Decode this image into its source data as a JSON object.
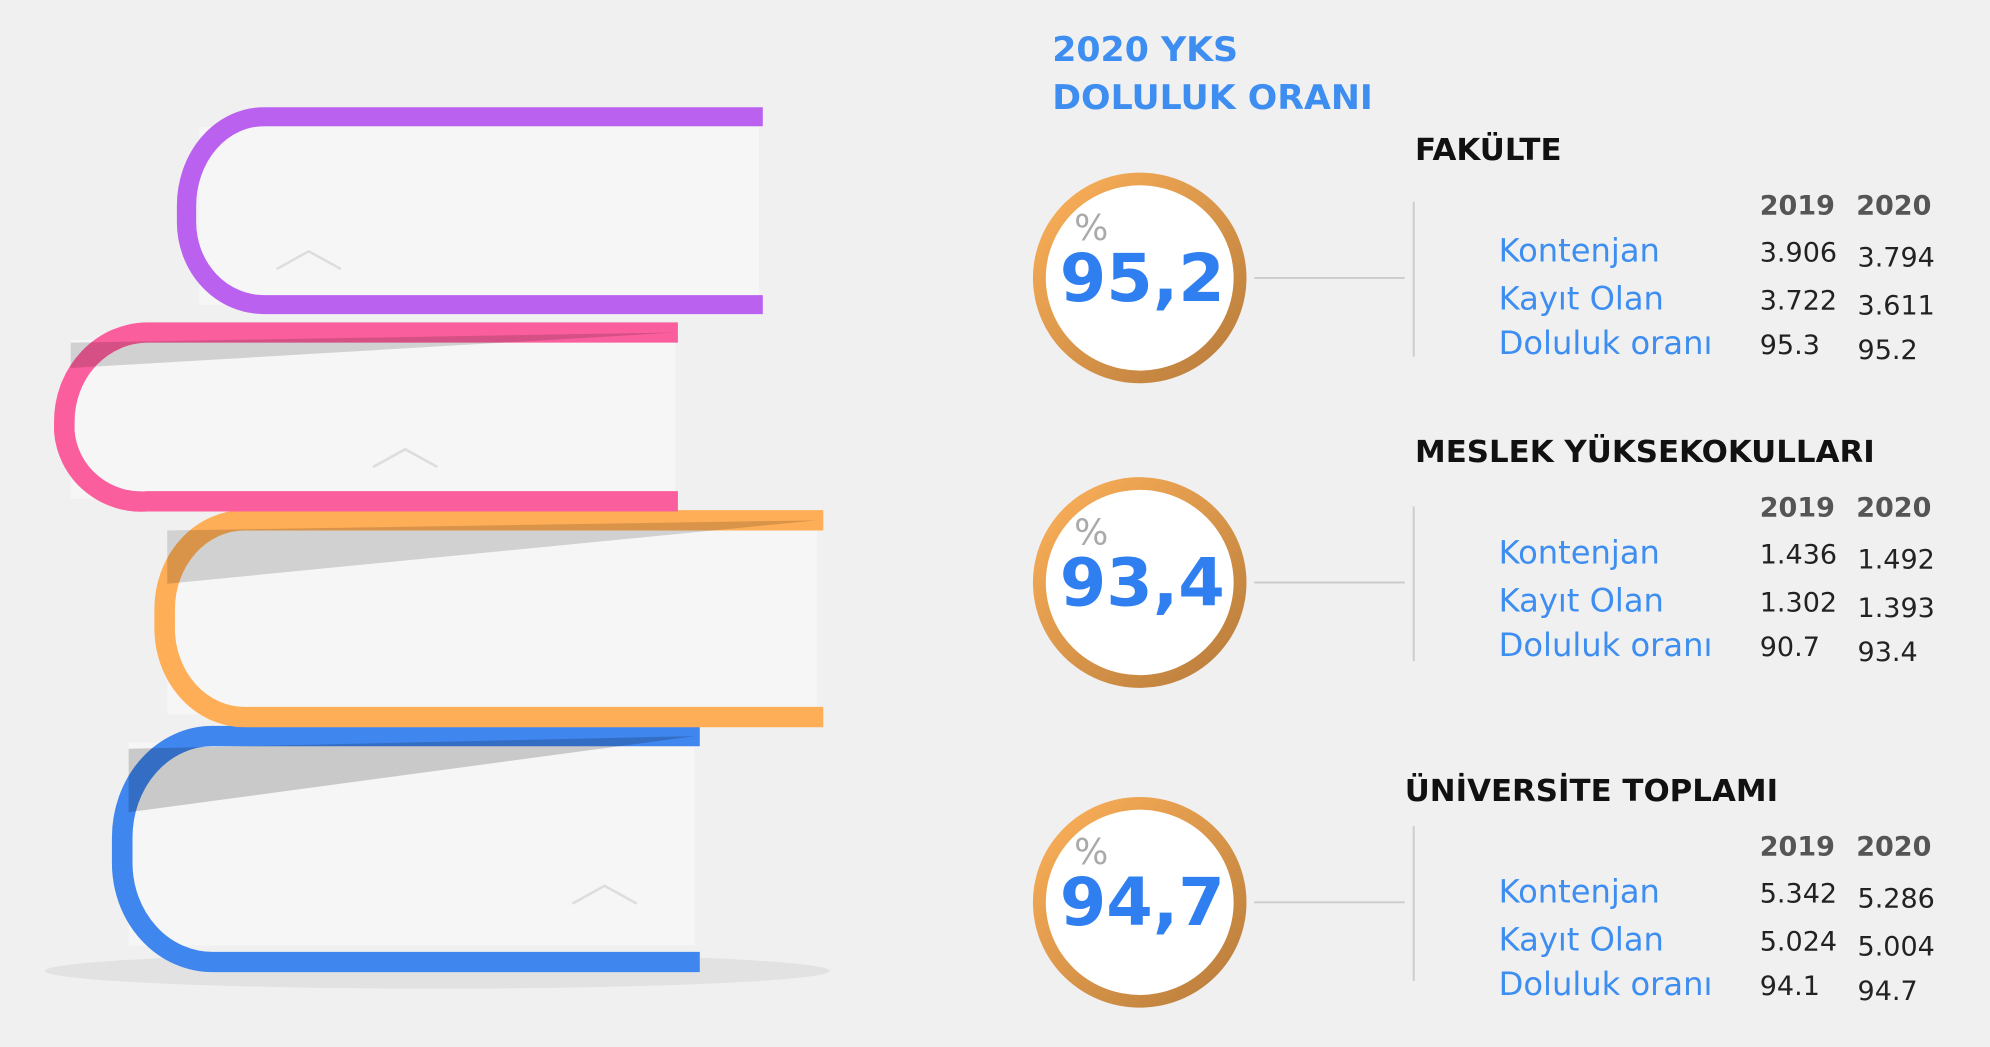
{
  "header": {
    "title_line1": "2020 YKS",
    "title_line2": "DOLULUK ORANI"
  },
  "sections": [
    {
      "heading": "FAKÜLTE",
      "symbol": "%",
      "value": "95,2",
      "years": [
        "2019",
        "2020"
      ],
      "rows": [
        {
          "label": "Kontenjan",
          "cells": [
            "3.906",
            "3.794"
          ]
        },
        {
          "label": "Kayıt Olan",
          "cells": [
            "3.722",
            "3.611"
          ]
        },
        {
          "label": "Doluluk oranı",
          "cells": [
            "95.3",
            "95.2"
          ]
        }
      ]
    },
    {
      "heading": "MESLEK YÜKSEKOKULLARI",
      "symbol": "%",
      "value": "93,4",
      "years": [
        "2019",
        "2020"
      ],
      "rows": [
        {
          "label": "Kontenjan",
          "cells": [
            "1.436",
            "1.492"
          ]
        },
        {
          "label": "Kayıt Olan",
          "cells": [
            "1.302",
            "1.393"
          ]
        },
        {
          "label": "Doluluk oranı",
          "cells": [
            "90.7",
            "93.4"
          ]
        }
      ]
    },
    {
      "heading": "ÜNİVERSİTE TOPLAMI",
      "symbol": "%",
      "value": "94,7",
      "years": [
        "2019",
        "2020"
      ],
      "rows": [
        {
          "label": "Kontenjan",
          "cells": [
            "5.342",
            "5.286"
          ]
        },
        {
          "label": "Kayıt Olan",
          "cells": [
            "5.024",
            "5.004"
          ]
        },
        {
          "label": "Doluluk oranı",
          "cells": [
            "94.1",
            "94.7"
          ]
        }
      ]
    }
  ]
}
